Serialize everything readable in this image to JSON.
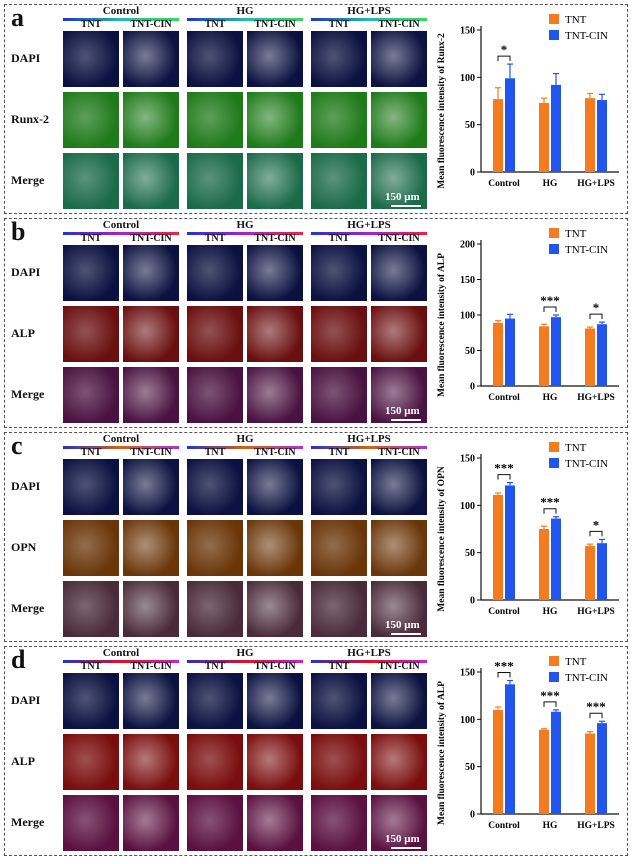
{
  "colors": {
    "tnt": "#F47B20",
    "tntcin": "#2255EE"
  },
  "groups": [
    "Control",
    "HG",
    "HG+LPS"
  ],
  "subgroups": [
    "TNT",
    "TNT-CIN"
  ],
  "legend": [
    "TNT",
    "TNT-CIN"
  ],
  "scale_label": "150 μm",
  "panels": [
    {
      "label": "a",
      "rows": [
        "DAPI",
        "Runx-2",
        "Merge"
      ],
      "row_colors": [
        "#0b1140",
        "#1f7a1a",
        "#1b6a4a"
      ],
      "bar_gradient": [
        "#2233cc",
        "#22bbaa",
        "#33dd55"
      ]
    },
    {
      "label": "b",
      "rows": [
        "DAPI",
        "ALP",
        "Merge"
      ],
      "row_colors": [
        "#0b1140",
        "#6a0f0f",
        "#4a1240"
      ],
      "bar_gradient": [
        "#2233cc",
        "#aa22cc",
        "#ee2244"
      ]
    },
    {
      "label": "c",
      "rows": [
        "DAPI",
        "OPN",
        "Merge"
      ],
      "row_colors": [
        "#0b1140",
        "#6a3508",
        "#4a2a3a"
      ],
      "bar_gradient": [
        "#2233cc",
        "#cc6611",
        "#aa33dd"
      ]
    },
    {
      "label": "d",
      "rows": [
        "DAPI",
        "ALP",
        "Merge"
      ],
      "row_colors": [
        "#0b1140",
        "#7a0d0d",
        "#5a1040"
      ],
      "bar_gradient": [
        "#2233cc",
        "#dd1122",
        "#cc22cc"
      ]
    }
  ],
  "chart_data": [
    {
      "type": "bar",
      "ylabel": "Mean fluorescence intensity of Runx-2",
      "categories": [
        "Control",
        "HG",
        "HG+LPS"
      ],
      "ylim": [
        0,
        150
      ],
      "yticks": [
        0,
        50,
        100,
        150
      ],
      "series": [
        {
          "name": "TNT",
          "values": [
            77,
            73,
            78
          ],
          "errors": [
            12,
            5,
            5
          ]
        },
        {
          "name": "TNT-CIN",
          "values": [
            99,
            92,
            76
          ],
          "errors": [
            15,
            12,
            6
          ]
        }
      ],
      "significance": [
        "*",
        "",
        ""
      ],
      "legend_position": "top-right"
    },
    {
      "type": "bar",
      "ylabel": "Mean fluorescence intensity of ALP",
      "categories": [
        "Control",
        "HG",
        "HG+LPS"
      ],
      "ylim": [
        0,
        200
      ],
      "yticks": [
        0,
        50,
        100,
        150,
        200
      ],
      "series": [
        {
          "name": "TNT",
          "values": [
            89,
            84,
            81
          ],
          "errors": [
            3,
            3,
            2
          ]
        },
        {
          "name": "TNT-CIN",
          "values": [
            95,
            97,
            87
          ],
          "errors": [
            6,
            3,
            3
          ]
        }
      ],
      "significance": [
        "",
        "***",
        "*"
      ],
      "legend_position": "top-right"
    },
    {
      "type": "bar",
      "ylabel": "Mean fluorescence intensity of OPN",
      "categories": [
        "Control",
        "HG",
        "HG+LPS"
      ],
      "ylim": [
        0,
        150
      ],
      "yticks": [
        0,
        50,
        100,
        150
      ],
      "series": [
        {
          "name": "TNT",
          "values": [
            111,
            75,
            57
          ],
          "errors": [
            2,
            3,
            2
          ]
        },
        {
          "name": "TNT-CIN",
          "values": [
            121,
            86,
            60
          ],
          "errors": [
            3,
            2,
            4
          ]
        }
      ],
      "significance": [
        "***",
        "***",
        "*"
      ],
      "legend_position": "top-right"
    },
    {
      "type": "bar",
      "ylabel": "Mean fluorescence intensity of ALP",
      "categories": [
        "Control",
        "HG",
        "HG+LPS"
      ],
      "ylim": [
        0,
        150
      ],
      "yticks": [
        0,
        50,
        100,
        150
      ],
      "series": [
        {
          "name": "TNT",
          "values": [
            110,
            89,
            85
          ],
          "errors": [
            3,
            1,
            2
          ]
        },
        {
          "name": "TNT-CIN",
          "values": [
            137,
            108,
            96
          ],
          "errors": [
            4,
            2,
            2
          ]
        }
      ],
      "significance": [
        "***",
        "***",
        "***"
      ],
      "legend_position": "top-right"
    }
  ]
}
